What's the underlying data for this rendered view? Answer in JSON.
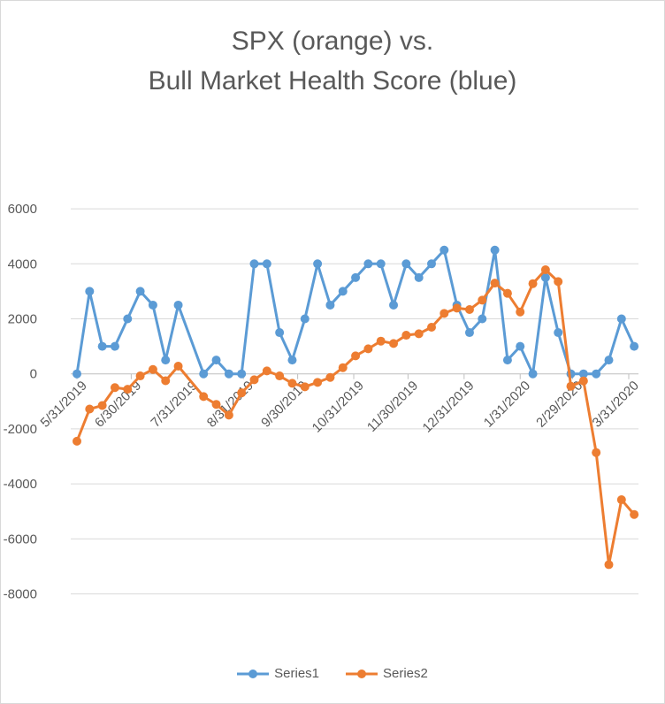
{
  "chart_data": {
    "type": "line",
    "title": "SPX (orange) vs.\nBull Market Health Score (blue)",
    "title_lines": [
      "SPX (orange) vs.",
      "Bull Market Health Score (blue)"
    ],
    "xlabel": "",
    "ylabel": "",
    "ylim": [
      -8000,
      6000
    ],
    "yticks": [
      6000,
      4000,
      2000,
      0,
      -2000,
      -4000,
      -6000,
      -8000
    ],
    "ytick_labels": [
      "6000",
      "4000",
      "2000",
      "0",
      "-2000",
      "-4000",
      "-6000",
      "-8000"
    ],
    "xtick_labels": [
      "5/31/2019",
      "6/30/2019",
      "7/31/2019",
      "8/31/2019",
      "9/30/2019",
      "10/31/2019",
      "11/30/2019",
      "12/31/2019",
      "1/31/2020",
      "2/29/2020",
      "3/31/2020"
    ],
    "xlim": [
      "5/31/2019",
      "4/3/2020"
    ],
    "grid": "horizontal",
    "legend_position": "bottom",
    "x": [
      "5/31/2019",
      "6/7/2019",
      "6/14/2019",
      "6/21/2019",
      "6/28/2019",
      "7/5/2019",
      "7/12/2019",
      "7/19/2019",
      "7/26/2019",
      "8/9/2019",
      "8/16/2019",
      "8/23/2019",
      "8/30/2019",
      "9/6/2019",
      "9/13/2019",
      "9/20/2019",
      "9/27/2019",
      "10/4/2019",
      "10/11/2019",
      "10/18/2019",
      "10/25/2019",
      "11/1/2019",
      "11/8/2019",
      "11/15/2019",
      "11/22/2019",
      "11/29/2019",
      "12/6/2019",
      "12/13/2019",
      "12/20/2019",
      "12/27/2019",
      "1/3/2020",
      "1/10/2020",
      "1/17/2020",
      "1/24/2020",
      "1/31/2020",
      "2/7/2020",
      "2/14/2020",
      "2/21/2020",
      "2/28/2020",
      "3/6/2020",
      "3/13/2020",
      "3/20/2020",
      "3/27/2020",
      "4/3/2020"
    ],
    "series": [
      {
        "name": "Series1",
        "color": "#5b9bd5",
        "values": [
          0,
          3000,
          1000,
          1000,
          2000,
          3000,
          2500,
          500,
          2500,
          0,
          500,
          0,
          0,
          4000,
          4000,
          1500,
          500,
          2000,
          4000,
          2500,
          3000,
          3500,
          4000,
          4000,
          2500,
          4000,
          3500,
          4000,
          4500,
          2500,
          1500,
          2000,
          4500,
          500,
          1000,
          0,
          3500,
          1500,
          0,
          0,
          0,
          500,
          2000,
          1000
        ]
      },
      {
        "name": "Series2",
        "color": "#ed7d31",
        "values": [
          -2450,
          -1280,
          -1150,
          -500,
          -560,
          -75,
          160,
          -250,
          280,
          -825,
          -1110,
          -1500,
          -690,
          -215,
          107,
          -75,
          -343,
          -470,
          -310,
          -130,
          225,
          654,
          911,
          1190,
          1104,
          1404,
          1458,
          1694,
          2198,
          2390,
          2337,
          2680,
          3300,
          2927,
          2251,
          3280,
          3784,
          3355,
          -450,
          -257,
          -2862,
          -6936,
          -4577,
          -5113
        ]
      }
    ]
  }
}
